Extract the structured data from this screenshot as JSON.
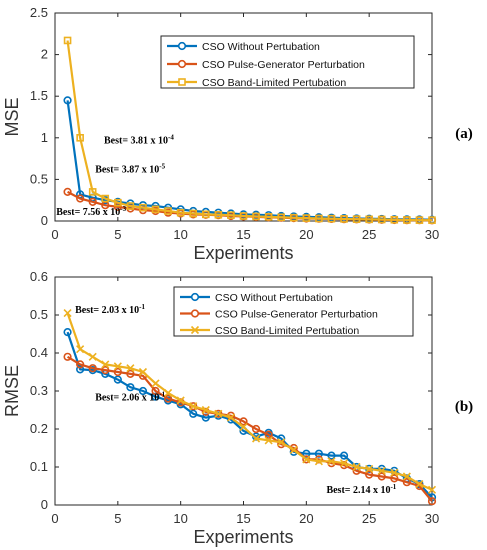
{
  "chart_data": [
    {
      "type": "line",
      "panel_label": "(a)",
      "xlabel": "Experiments",
      "ylabel": "MSE",
      "xlim": [
        0,
        30
      ],
      "ylim": [
        0,
        2.5
      ],
      "xticks": [
        "0",
        "5",
        "10",
        "15",
        "20",
        "25",
        "30"
      ],
      "yticks": [
        "0",
        "0.5",
        "1",
        "1.5",
        "2",
        "2.5"
      ],
      "legend_position": "top-right",
      "x": [
        1,
        2,
        3,
        4,
        5,
        6,
        7,
        8,
        9,
        10,
        11,
        12,
        13,
        14,
        15,
        16,
        17,
        18,
        19,
        20,
        21,
        22,
        23,
        24,
        25,
        26,
        27,
        28,
        29,
        30
      ],
      "series": [
        {
          "name": "CSO Without Pertubation",
          "color": "#0072BD",
          "marker": "circle",
          "values": [
            1.45,
            0.32,
            0.28,
            0.25,
            0.23,
            0.21,
            0.19,
            0.18,
            0.16,
            0.14,
            0.12,
            0.11,
            0.1,
            0.09,
            0.08,
            0.075,
            0.07,
            0.06,
            0.055,
            0.05,
            0.045,
            0.04,
            0.035,
            0.03,
            0.028,
            0.025,
            0.022,
            0.02,
            0.018,
            0.015
          ]
        },
        {
          "name": "CSO Pulse-Generator Perturbation",
          "color": "#D95319",
          "marker": "circle",
          "values": [
            0.35,
            0.27,
            0.23,
            0.19,
            0.17,
            0.15,
            0.13,
            0.12,
            0.1,
            0.09,
            0.08,
            0.075,
            0.07,
            0.06,
            0.055,
            0.05,
            0.045,
            0.04,
            0.035,
            0.03,
            0.028,
            0.025,
            0.022,
            0.02,
            0.018,
            0.015,
            0.012,
            0.01,
            0.01,
            0.008
          ]
        },
        {
          "name": "CSO Band-Limited Pertubation",
          "color": "#EDB120",
          "marker": "square",
          "values": [
            2.17,
            1.0,
            0.35,
            0.27,
            0.22,
            0.18,
            0.16,
            0.14,
            0.12,
            0.1,
            0.09,
            0.08,
            0.075,
            0.07,
            0.06,
            0.055,
            0.05,
            0.045,
            0.04,
            0.035,
            0.03,
            0.028,
            0.025,
            0.022,
            0.02,
            0.018,
            0.015,
            0.012,
            0.01,
            0.01
          ]
        }
      ],
      "annotations": [
        {
          "prefix": "Best= ",
          "mantissa": "3.81 x 10",
          "exponent": "-4",
          "x": 3.9,
          "y": 0.93
        },
        {
          "prefix": "Best= ",
          "mantissa": "3.87 x 10",
          "exponent": "-5",
          "x": 3.2,
          "y": 0.58
        },
        {
          "prefix": "Best= ",
          "mantissa": "7.56 x 10",
          "exponent": "-3",
          "x": 0.1,
          "y": 0.07
        }
      ]
    },
    {
      "type": "line",
      "panel_label": "(b)",
      "xlabel": "Experiments",
      "ylabel": "RMSE",
      "xlim": [
        0,
        30
      ],
      "ylim": [
        0,
        0.6
      ],
      "xticks": [
        "0",
        "5",
        "10",
        "15",
        "20",
        "25",
        "30"
      ],
      "yticks": [
        "0",
        "0.1",
        "0.2",
        "0.3",
        "0.4",
        "0.5",
        "0.6"
      ],
      "legend_position": "top-right",
      "x": [
        1,
        2,
        3,
        4,
        5,
        6,
        7,
        8,
        9,
        10,
        11,
        12,
        13,
        14,
        15,
        16,
        17,
        18,
        19,
        20,
        21,
        22,
        23,
        24,
        25,
        26,
        27,
        28,
        29,
        30
      ],
      "series": [
        {
          "name": "CSO Without Pertubation",
          "color": "#0072BD",
          "marker": "circle",
          "values": [
            0.455,
            0.357,
            0.355,
            0.345,
            0.33,
            0.31,
            0.3,
            0.285,
            0.275,
            0.265,
            0.24,
            0.23,
            0.235,
            0.225,
            0.195,
            0.18,
            0.19,
            0.175,
            0.14,
            0.135,
            0.135,
            0.13,
            0.13,
            0.1,
            0.095,
            0.095,
            0.09,
            0.07,
            0.055,
            0.02
          ]
        },
        {
          "name": "CSO Pulse-Generator Perturbation",
          "color": "#D95319",
          "marker": "circle",
          "values": [
            0.39,
            0.37,
            0.36,
            0.355,
            0.35,
            0.345,
            0.34,
            0.3,
            0.28,
            0.27,
            0.26,
            0.245,
            0.24,
            0.235,
            0.22,
            0.2,
            0.185,
            0.16,
            0.15,
            0.12,
            0.12,
            0.11,
            0.105,
            0.09,
            0.08,
            0.075,
            0.07,
            0.06,
            0.05,
            0.01
          ]
        },
        {
          "name": "CSO Band-Limited Pertubation",
          "color": "#EDB120",
          "marker": "x",
          "values": [
            0.505,
            0.41,
            0.39,
            0.37,
            0.365,
            0.36,
            0.35,
            0.32,
            0.295,
            0.275,
            0.26,
            0.25,
            0.24,
            0.23,
            0.205,
            0.175,
            0.17,
            0.165,
            0.145,
            0.12,
            0.115,
            0.115,
            0.11,
            0.1,
            0.095,
            0.09,
            0.085,
            0.075,
            0.055,
            0.04
          ]
        }
      ],
      "annotations": [
        {
          "prefix": "Best= ",
          "mantissa": "2.03 x 10",
          "exponent": "-1",
          "x": 1.6,
          "y": 0.505
        },
        {
          "prefix": "Best= ",
          "mantissa": "2.06 x 10",
          "exponent": "-1",
          "x": 3.2,
          "y": 0.275
        },
        {
          "prefix": "Best= ",
          "mantissa": "2.14 x 10",
          "exponent": "-1",
          "x": 21.6,
          "y": 0.032
        }
      ]
    }
  ]
}
